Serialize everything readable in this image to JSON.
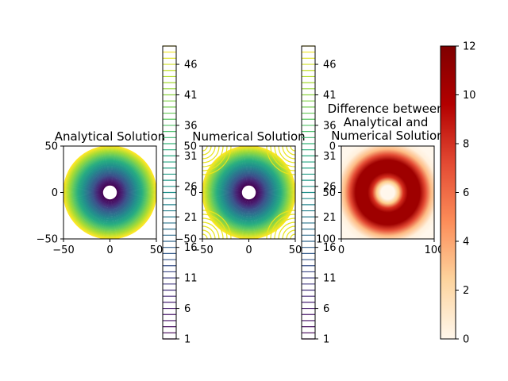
{
  "chart_data": [
    {
      "type": "contour",
      "title": "Analytical Solution",
      "xlim": [
        -50,
        50
      ],
      "ylim": [
        -50,
        50
      ],
      "xticks": [
        "−50",
        "0",
        "50"
      ],
      "yticks": [
        "50",
        "0",
        "−50"
      ],
      "levels": [
        1,
        49
      ],
      "inner_radius": 8,
      "outer_radius": 50,
      "colormap": "viridis",
      "colorbar": {
        "range": [
          1,
          49
        ],
        "ticks": [
          "1",
          "6",
          "11",
          "16",
          "21",
          "26",
          "31",
          "36",
          "41",
          "46"
        ]
      }
    },
    {
      "type": "contour",
      "title": "Numerical Solution",
      "xlim": [
        -50,
        50
      ],
      "ylim": [
        -50,
        50
      ],
      "xticks": [
        "−50",
        "0",
        "50"
      ],
      "yticks": [
        "50",
        "0",
        "−50"
      ],
      "levels": [
        1,
        49
      ],
      "inner_radius": 8,
      "colormap": "viridis",
      "colorbar": {
        "range": [
          1,
          49
        ],
        "ticks": [
          "1",
          "6",
          "11",
          "16",
          "21",
          "26",
          "31",
          "36",
          "41",
          "46"
        ]
      }
    },
    {
      "type": "heatmap",
      "title": "Difference between Analytical and Numerical Solution",
      "title_lines": [
        "Difference between",
        "Analytical and",
        "Numerical Solution"
      ],
      "xlim": [
        0,
        100
      ],
      "ylim": [
        100,
        0
      ],
      "xticks": [
        "0",
        "100"
      ],
      "yticks": [
        "0",
        "50",
        "100"
      ],
      "colormap": "OrRd",
      "colorbar": {
        "range": [
          0,
          12
        ],
        "ticks": [
          "0",
          "2",
          "4",
          "6",
          "8",
          "10",
          "12"
        ]
      }
    }
  ]
}
